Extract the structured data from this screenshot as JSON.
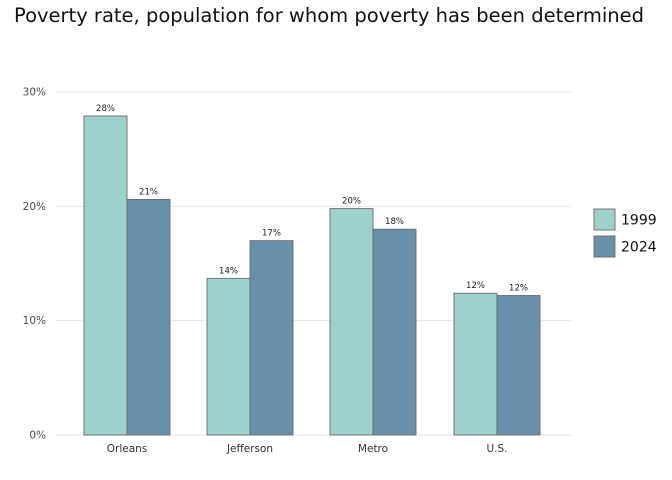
{
  "chart_data": {
    "type": "bar",
    "title": "Poverty rate, population for whom poverty has been determined",
    "xlabel": "",
    "ylabel": "",
    "categories": [
      "Orleans",
      "Jefferson",
      "Metro",
      "U.S."
    ],
    "series": [
      {
        "name": "1999",
        "color": "#9ed0cc",
        "values": [
          27.9,
          13.7,
          19.8,
          12.4
        ],
        "labels": [
          "28%",
          "14%",
          "20%",
          "12%"
        ]
      },
      {
        "name": "2024",
        "color": "#6990ab",
        "values": [
          20.6,
          17.0,
          18.0,
          12.2
        ],
        "labels": [
          "21%",
          "17%",
          "18%",
          "12%"
        ]
      }
    ],
    "ylim": [
      0,
      30
    ],
    "yticks": [
      0,
      10,
      20,
      30
    ],
    "ytick_labels": [
      "0%",
      "10%",
      "20%",
      "30%"
    ],
    "grid": true,
    "legend_position": "right"
  }
}
